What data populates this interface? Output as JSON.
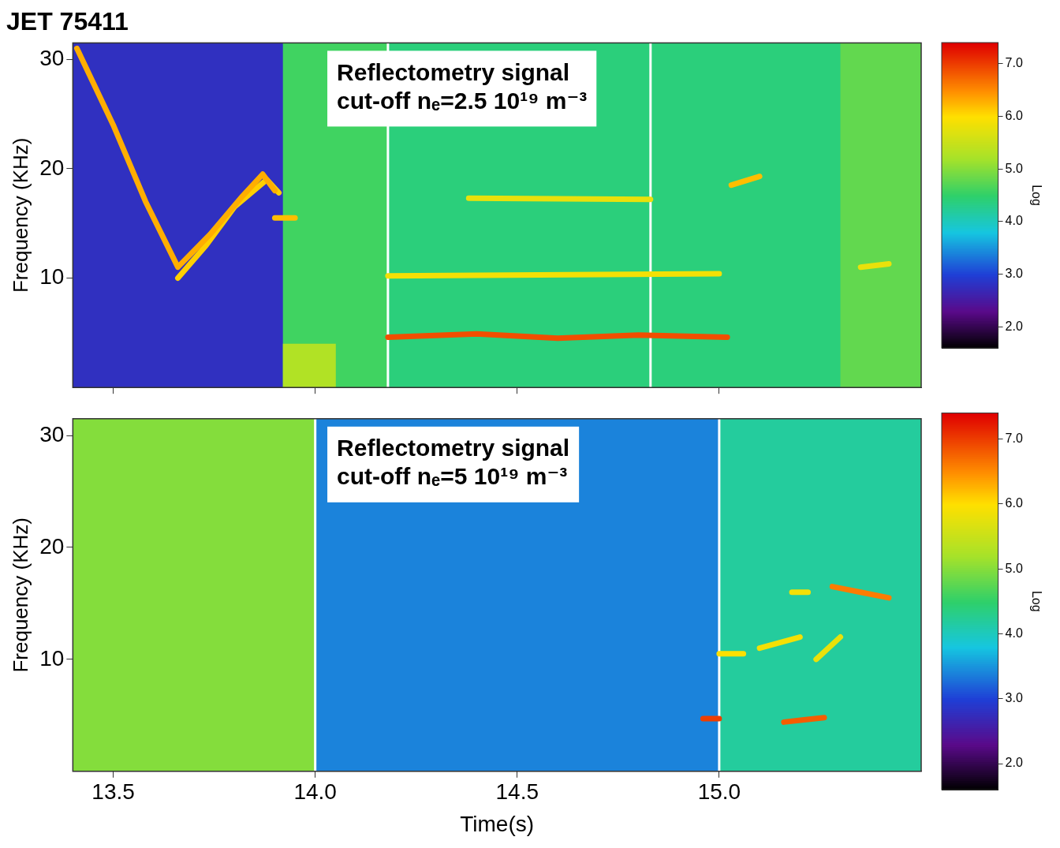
{
  "chart_data": [
    {
      "type": "heatmap",
      "title": "JET 75411",
      "y_label": "Frequency (KHz)",
      "xlim": [
        13.4,
        15.5
      ],
      "xticks": [
        13.5,
        {
          "value": 14,
          "label": "14.0"
        },
        14.5,
        {
          "value": 15,
          "label": "15.0"
        }
      ],
      "ylim": [
        0,
        31.5
      ],
      "yticks": [
        10,
        20,
        30
      ],
      "grid": false,
      "tick_labels": "y",
      "annotations": [
        {
          "lines": [
            "Reflectometry signal",
            "cut-off nₑ=2.5 10¹⁹ m⁻³"
          ]
        }
      ],
      "time_markers": [
        14.18,
        14.83
      ],
      "cells": [
        {
          "t": [
            13.4,
            13.92
          ],
          "f": [
            0,
            31.5
          ],
          "value": 2.8
        },
        {
          "t": [
            13.92,
            14.18
          ],
          "f": [
            0,
            31.5
          ],
          "value": 4.6
        },
        {
          "t": [
            14.18,
            15.3
          ],
          "f": [
            0,
            31.5
          ],
          "value": 4.4
        },
        {
          "t": [
            15.3,
            15.5
          ],
          "f": [
            0,
            31.5
          ],
          "value": 4.8
        },
        {
          "t": [
            13.92,
            14.05
          ],
          "f": [
            0,
            4
          ],
          "value": 5.3
        }
      ],
      "modes": [
        {
          "t": [
            13.41,
            13.5,
            13.58,
            13.66,
            13.74,
            13.82,
            13.87,
            13.9
          ],
          "f": [
            31,
            24,
            17,
            11,
            14,
            17.5,
            19.5,
            18
          ],
          "value": 6.3
        },
        {
          "t": [
            13.66,
            13.73,
            13.8,
            13.88,
            13.91
          ],
          "f": [
            10,
            13,
            16.5,
            19,
            17.8
          ],
          "value": 6.1
        },
        {
          "t": [
            14.18,
            14.4,
            14.6,
            14.8,
            15.02
          ],
          "f": [
            4.6,
            4.9,
            4.5,
            4.8,
            4.6
          ],
          "value": 6.9
        },
        {
          "t": [
            14.18,
            15.0
          ],
          "f": [
            10.2,
            10.4
          ],
          "value": 5.9
        },
        {
          "t": [
            14.38,
            14.83
          ],
          "f": [
            17.3,
            17.2
          ],
          "value": 5.8
        },
        {
          "t": [
            13.9,
            13.95
          ],
          "f": [
            15.5,
            15.5
          ],
          "value": 6.2
        },
        {
          "t": [
            15.03,
            15.1
          ],
          "f": [
            18.5,
            19.3
          ],
          "value": 6.2
        },
        {
          "t": [
            15.35,
            15.42
          ],
          "f": [
            11,
            11.3
          ],
          "value": 5.8
        }
      ],
      "colorbar": {
        "title": "Log",
        "range": [
          1.6,
          7.4
        ],
        "ticks": [
          {
            "value": 2,
            "label": "2.0"
          },
          {
            "value": 3,
            "label": "3.0"
          },
          {
            "value": 4,
            "label": "4.0"
          },
          {
            "value": 5,
            "label": "5.0"
          },
          {
            "value": 6,
            "label": "6.0"
          },
          {
            "value": 7,
            "label": "7.0"
          }
        ]
      }
    },
    {
      "type": "heatmap",
      "x_label": "Time(s)",
      "y_label": "Frequency (KHz)",
      "xlim": [
        13.4,
        15.5
      ],
      "xticks": [
        13.5,
        {
          "value": 14,
          "label": "14.0"
        },
        14.5,
        {
          "value": 15,
          "label": "15.0"
        }
      ],
      "ylim": [
        0,
        31.5
      ],
      "yticks": [
        10,
        20,
        30
      ],
      "grid": false,
      "annotations": [
        {
          "lines": [
            "Reflectometry signal",
            "cut-off nₑ=5 10¹⁹ m⁻³"
          ]
        }
      ],
      "time_markers": [
        14.0,
        15.0
      ],
      "cells": [
        {
          "t": [
            13.4,
            14.0
          ],
          "f": [
            0,
            31.5
          ],
          "value": 5.0
        },
        {
          "t": [
            14.0,
            15.0
          ],
          "f": [
            0,
            31.5
          ],
          "value": 3.4
        },
        {
          "t": [
            15.0,
            15.5
          ],
          "f": [
            0,
            31.5
          ],
          "value": 4.2
        }
      ],
      "modes": [
        {
          "t": [
            14.96,
            15.0
          ],
          "f": [
            4.7,
            4.7
          ],
          "value": 7.0
        },
        {
          "t": [
            15.16,
            15.21,
            15.26
          ],
          "f": [
            4.4,
            4.6,
            4.8
          ],
          "value": 6.8
        },
        {
          "t": [
            15.28,
            15.35,
            15.42
          ],
          "f": [
            16.5,
            16,
            15.5
          ],
          "value": 6.6
        },
        {
          "t": [
            15.0,
            15.06
          ],
          "f": [
            10.5,
            10.5
          ],
          "value": 6.0
        },
        {
          "t": [
            15.1,
            15.2
          ],
          "f": [
            11,
            12
          ],
          "value": 5.9
        },
        {
          "t": [
            15.18,
            15.22
          ],
          "f": [
            16,
            16
          ],
          "value": 5.9
        },
        {
          "t": [
            15.24,
            15.3
          ],
          "f": [
            10,
            12
          ],
          "value": 5.8
        }
      ],
      "colorbar": {
        "title": "Log",
        "range": [
          1.6,
          7.4
        ],
        "ticks": [
          {
            "value": 2,
            "label": "2.0"
          },
          {
            "value": 3,
            "label": "3.0"
          },
          {
            "value": 4,
            "label": "4.0"
          },
          {
            "value": 5,
            "label": "5.0"
          },
          {
            "value": 6,
            "label": "6.0"
          },
          {
            "value": 7,
            "label": "7.0"
          }
        ]
      }
    }
  ]
}
